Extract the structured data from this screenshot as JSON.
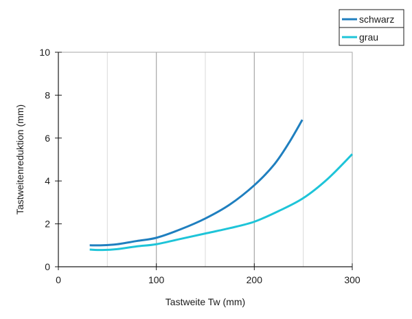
{
  "chart_data": {
    "type": "line",
    "xlabel": "Tastweite Tw (mm)",
    "ylabel": "Tastweitenreduktion (mm)",
    "xlim": [
      0,
      300
    ],
    "ylim": [
      0,
      10
    ],
    "x_ticks": [
      "0",
      "100",
      "200",
      "300"
    ],
    "y_ticks": [
      "0",
      "2",
      "4",
      "6",
      "8",
      "10"
    ],
    "grid": "vertical-major-and-minor",
    "legend_position": "top-right-outside",
    "series": [
      {
        "name": "schwarz",
        "color": "#1f7fbf",
        "points": [
          [
            32,
            1.0
          ],
          [
            45,
            1.0
          ],
          [
            60,
            1.05
          ],
          [
            80,
            1.2
          ],
          [
            100,
            1.35
          ],
          [
            125,
            1.75
          ],
          [
            150,
            2.25
          ],
          [
            175,
            2.9
          ],
          [
            200,
            3.8
          ],
          [
            220,
            4.75
          ],
          [
            235,
            5.75
          ],
          [
            249,
            6.85
          ]
        ]
      },
      {
        "name": "grau",
        "color": "#1ec4d8",
        "points": [
          [
            32,
            0.8
          ],
          [
            45,
            0.78
          ],
          [
            60,
            0.82
          ],
          [
            80,
            0.95
          ],
          [
            100,
            1.05
          ],
          [
            125,
            1.3
          ],
          [
            150,
            1.55
          ],
          [
            175,
            1.8
          ],
          [
            200,
            2.1
          ],
          [
            225,
            2.6
          ],
          [
            250,
            3.2
          ],
          [
            275,
            4.1
          ],
          [
            300,
            5.25
          ]
        ]
      }
    ]
  }
}
